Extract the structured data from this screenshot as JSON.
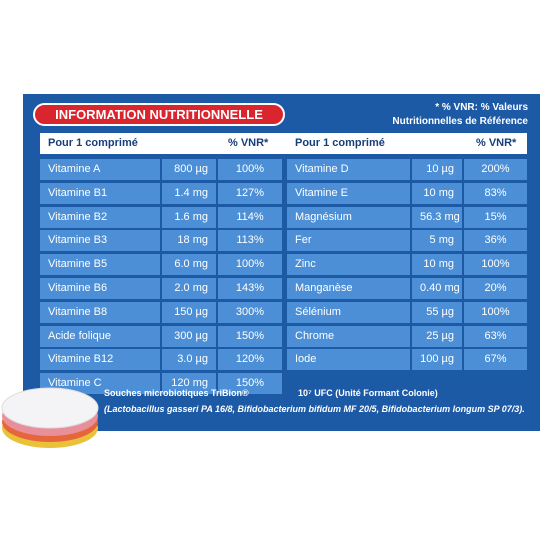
{
  "header": {
    "title": "INFORMATION NUTRITIONNELLE",
    "note": [
      "* % VNR: % Valeurs",
      "Nutritionnelles de Référence"
    ]
  },
  "table": {
    "columns": [
      "Pour 1 comprimé",
      "% VNR*"
    ],
    "left": [
      [
        "Vitamine A",
        "800 µg",
        "100%"
      ],
      [
        "Vitamine B1",
        "1.4 mg",
        "127%"
      ],
      [
        "Vitamine B2",
        "1.6 mg",
        "114%"
      ],
      [
        "Vitamine B3",
        "18 mg",
        "113%"
      ],
      [
        "Vitamine B5",
        "6.0 mg",
        "100%"
      ],
      [
        "Vitamine B6",
        "2.0 mg",
        "143%"
      ],
      [
        "Vitamine B8",
        "150 µg",
        "300%"
      ],
      [
        "Acide folique",
        "300 µg",
        "150%"
      ],
      [
        "Vitamine B12",
        "3.0 µg",
        "120%"
      ],
      [
        "Vitamine C",
        "120 mg",
        "150%"
      ]
    ],
    "right": [
      [
        "Vitamine D",
        "10 µg",
        "200%"
      ],
      [
        "Vitamine E",
        "10 mg",
        "83%"
      ],
      [
        "Magnésium",
        "56.3 mg",
        "15%"
      ],
      [
        "Fer",
        "5 mg",
        "36%"
      ],
      [
        "Zinc",
        "10 mg",
        "100%"
      ],
      [
        "Manganèse",
        "0.40 mg",
        "20%"
      ],
      [
        "Sélénium",
        "55 µg",
        "100%"
      ],
      [
        "Chrome",
        "25 µg",
        "63%"
      ],
      [
        "Iode",
        "100 µg",
        "67%"
      ]
    ]
  },
  "footnote": {
    "strain": "Souches microbiotiques TriBion®",
    "count": "10⁷ UFC (Unité Formant Colonie)",
    "species": "(Lactobacillus gasseri PA 16/8, Bifidobacterium bifidum MF 20/5, Bifidobacterium longum SP 07/3)."
  }
}
